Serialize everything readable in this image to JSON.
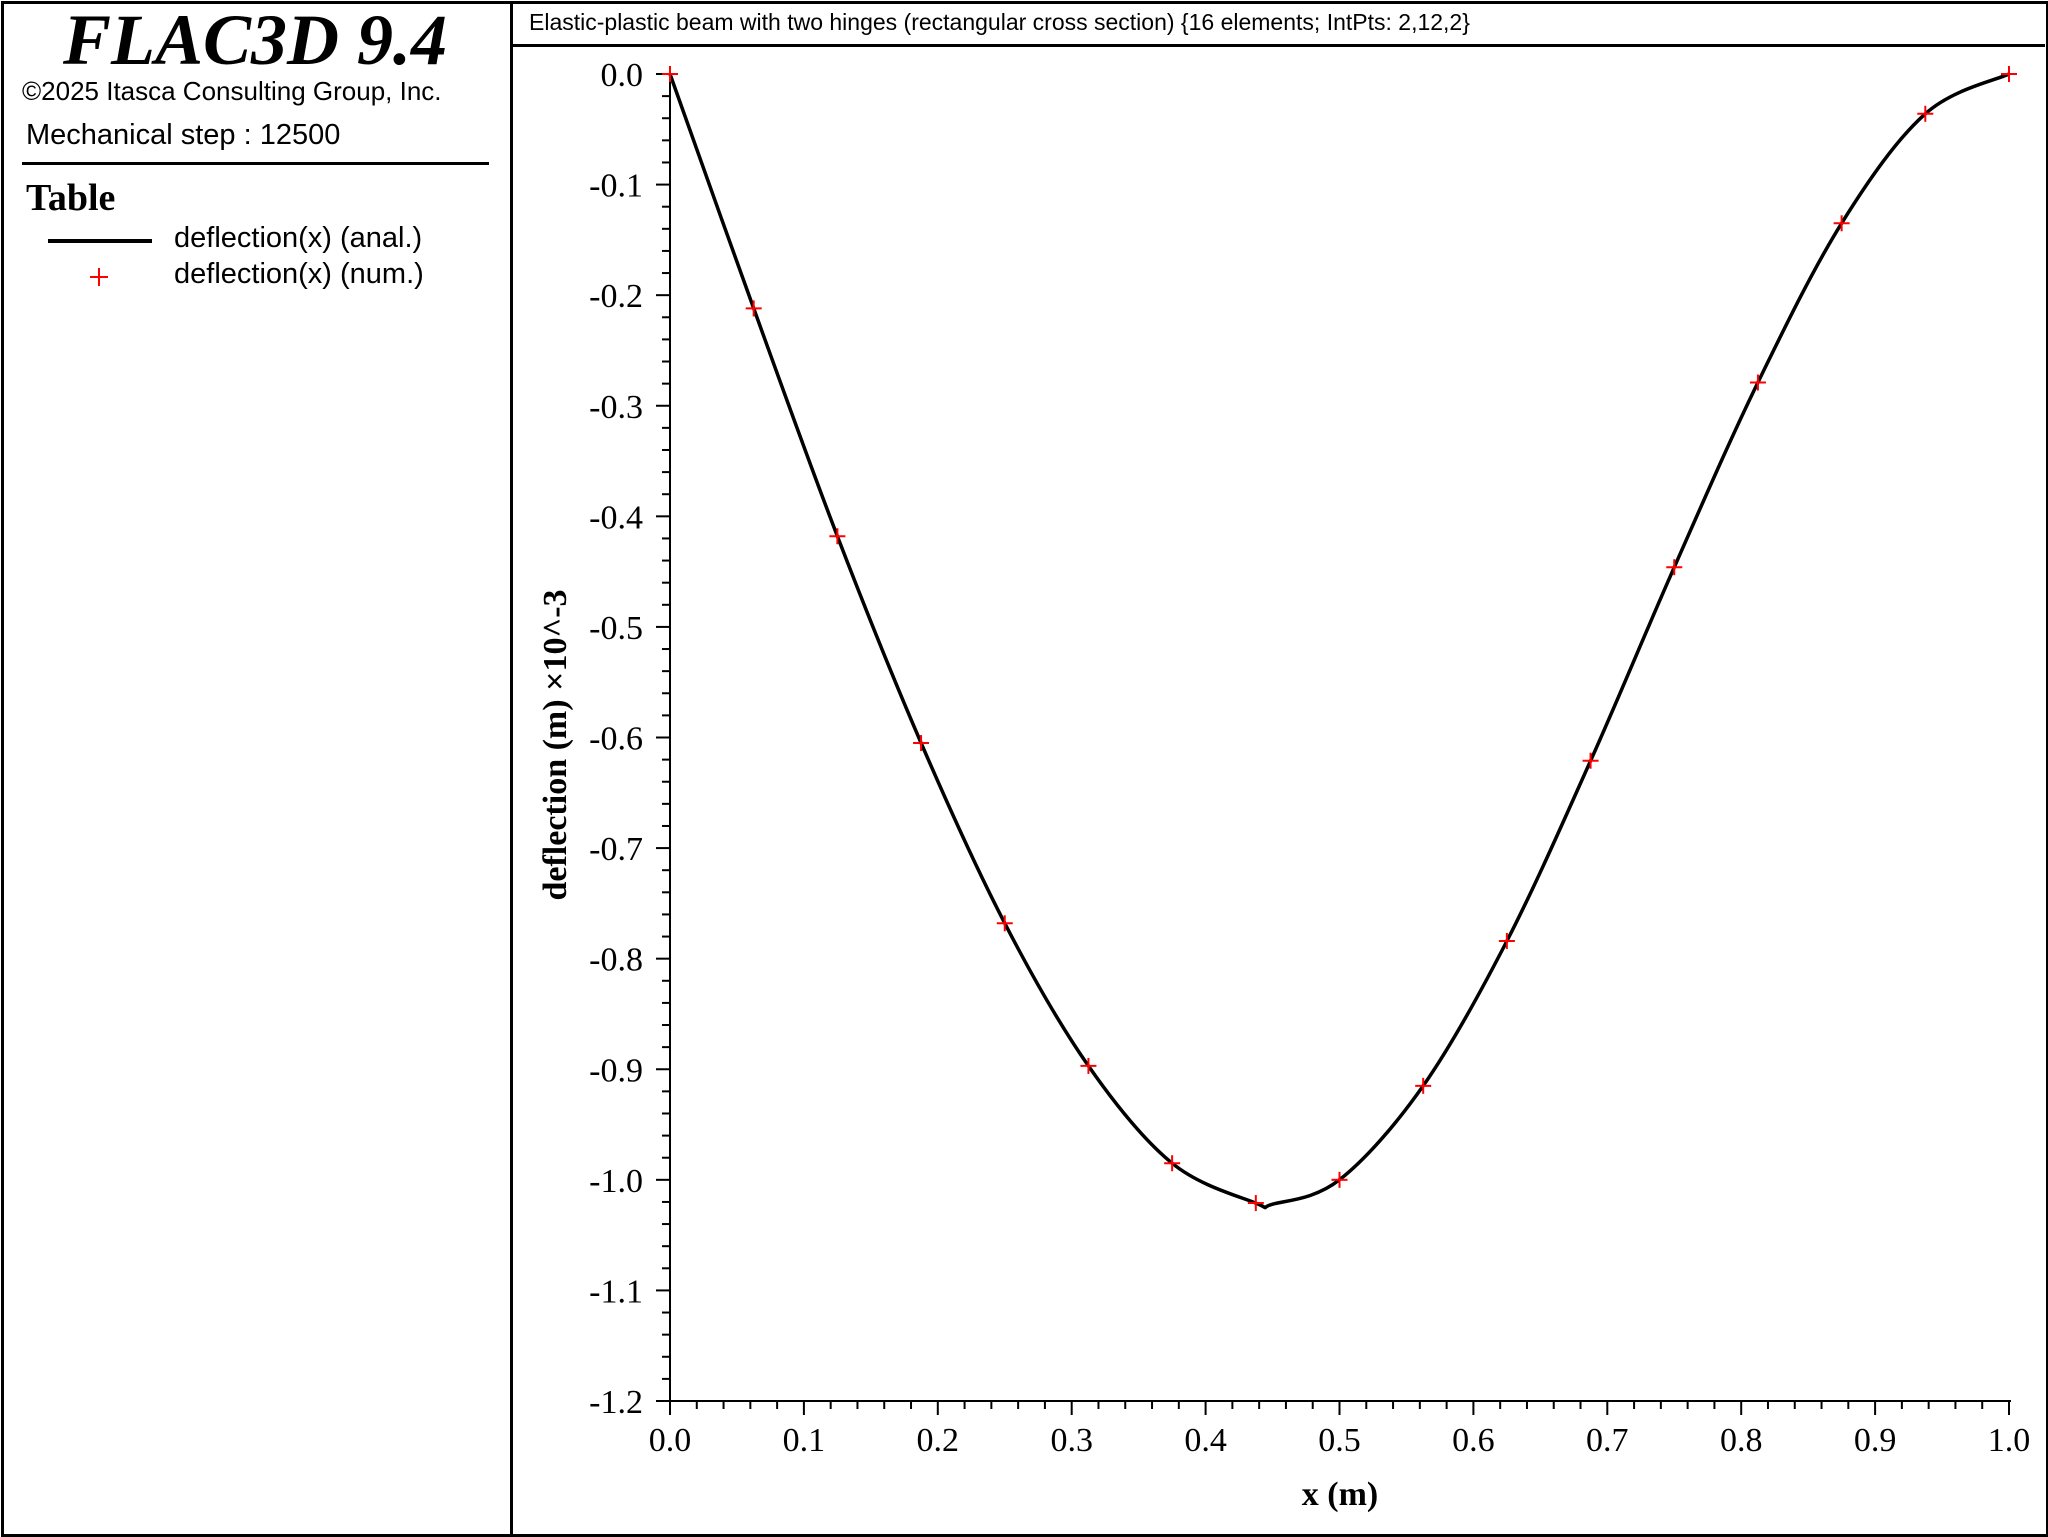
{
  "app": {
    "title": "FLAC3D 9.4",
    "copyright": "©2025 Itasca Consulting Group, Inc.",
    "step_label": "Mechanical step : 12500"
  },
  "legend": {
    "title": "Table",
    "items": [
      {
        "label": "deflection(x) (anal.)",
        "style": "line",
        "color": "#000000"
      },
      {
        "label": "deflection(x) (num.)",
        "style": "plus-marker",
        "color": "#ff0000"
      }
    ]
  },
  "chart_data": {
    "type": "line",
    "title": "Elastic-plastic beam with two hinges (rectangular cross section) {16 elements; IntPts: 2,12,2}",
    "xlabel": "x (m)",
    "ylabel": "deflection (m) ×10^-3",
    "xlim": [
      0.0,
      1.0
    ],
    "ylim": [
      -1.2,
      0.0
    ],
    "x_ticks": [
      "0.0",
      "0.1",
      "0.2",
      "0.3",
      "0.4",
      "0.5",
      "0.6",
      "0.7",
      "0.8",
      "0.9",
      "1.0"
    ],
    "y_ticks": [
      "0.0",
      "-0.1",
      "-0.2",
      "-0.3",
      "-0.4",
      "-0.5",
      "-0.6",
      "-0.7",
      "-0.8",
      "-0.9",
      "-1.0",
      "-1.1",
      "-1.2"
    ],
    "grid": false,
    "series": [
      {
        "name": "deflection(x) (anal.)",
        "kind": "line",
        "color": "#000000",
        "x": [
          0,
          0.0625,
          0.125,
          0.1875,
          0.25,
          0.3125,
          0.375,
          0.4375,
          0.45,
          0.5,
          0.5625,
          0.625,
          0.6875,
          0.75,
          0.8125,
          0.875,
          0.9375,
          1.0
        ],
        "y": [
          0,
          -0.212,
          -0.418,
          -0.605,
          -0.768,
          -0.897,
          -0.985,
          -1.021,
          -1.022,
          -1.0,
          -0.915,
          -0.784,
          -0.621,
          -0.446,
          -0.279,
          -0.135,
          -0.036,
          0
        ]
      },
      {
        "name": "deflection(x) (num.)",
        "kind": "scatter",
        "marker": "+",
        "color": "#ff0000",
        "x": [
          0,
          0.0625,
          0.125,
          0.1875,
          0.25,
          0.3125,
          0.375,
          0.4375,
          0.5,
          0.5625,
          0.625,
          0.6875,
          0.75,
          0.8125,
          0.875,
          0.9375,
          1.0
        ],
        "y": [
          0,
          -0.212,
          -0.418,
          -0.605,
          -0.768,
          -0.897,
          -0.985,
          -1.021,
          -1.0,
          -0.915,
          -0.784,
          -0.621,
          -0.446,
          -0.279,
          -0.135,
          -0.036,
          0
        ]
      }
    ]
  }
}
